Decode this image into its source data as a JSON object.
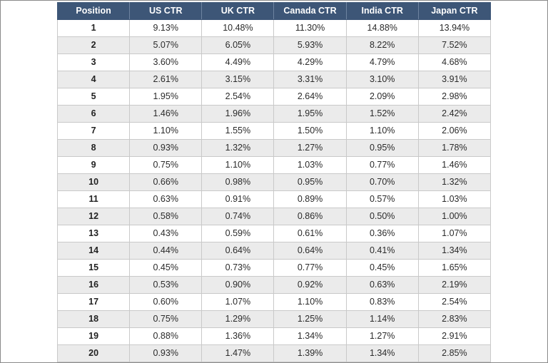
{
  "table": {
    "headers": [
      "Position",
      "US CTR",
      "UK CTR",
      "Canada CTR",
      "India CTR",
      "Japan CTR"
    ],
    "rows": [
      [
        "1",
        "9.13%",
        "10.48%",
        "11.30%",
        "14.88%",
        "13.94%"
      ],
      [
        "2",
        "5.07%",
        "6.05%",
        "5.93%",
        "8.22%",
        "7.52%"
      ],
      [
        "3",
        "3.60%",
        "4.49%",
        "4.29%",
        "4.79%",
        "4.68%"
      ],
      [
        "4",
        "2.61%",
        "3.15%",
        "3.31%",
        "3.10%",
        "3.91%"
      ],
      [
        "5",
        "1.95%",
        "2.54%",
        "2.64%",
        "2.09%",
        "2.98%"
      ],
      [
        "6",
        "1.46%",
        "1.96%",
        "1.95%",
        "1.52%",
        "2.42%"
      ],
      [
        "7",
        "1.10%",
        "1.55%",
        "1.50%",
        "1.10%",
        "2.06%"
      ],
      [
        "8",
        "0.93%",
        "1.32%",
        "1.27%",
        "0.95%",
        "1.78%"
      ],
      [
        "9",
        "0.75%",
        "1.10%",
        "1.03%",
        "0.77%",
        "1.46%"
      ],
      [
        "10",
        "0.66%",
        "0.98%",
        "0.95%",
        "0.70%",
        "1.32%"
      ],
      [
        "11",
        "0.63%",
        "0.91%",
        "0.89%",
        "0.57%",
        "1.03%"
      ],
      [
        "12",
        "0.58%",
        "0.74%",
        "0.86%",
        "0.50%",
        "1.00%"
      ],
      [
        "13",
        "0.43%",
        "0.59%",
        "0.61%",
        "0.36%",
        "1.07%"
      ],
      [
        "14",
        "0.44%",
        "0.64%",
        "0.64%",
        "0.41%",
        "1.34%"
      ],
      [
        "15",
        "0.45%",
        "0.73%",
        "0.77%",
        "0.45%",
        "1.65%"
      ],
      [
        "16",
        "0.53%",
        "0.90%",
        "0.92%",
        "0.63%",
        "2.19%"
      ],
      [
        "17",
        "0.60%",
        "1.07%",
        "1.10%",
        "0.83%",
        "2.54%"
      ],
      [
        "18",
        "0.75%",
        "1.29%",
        "1.25%",
        "1.14%",
        "2.83%"
      ],
      [
        "19",
        "0.88%",
        "1.36%",
        "1.34%",
        "1.27%",
        "2.91%"
      ],
      [
        "20",
        "0.93%",
        "1.47%",
        "1.39%",
        "1.34%",
        "2.85%"
      ]
    ]
  },
  "colors": {
    "header_background": "#3d5677",
    "header_text": "#ffffff",
    "row_alt_background": "#ebebeb"
  }
}
